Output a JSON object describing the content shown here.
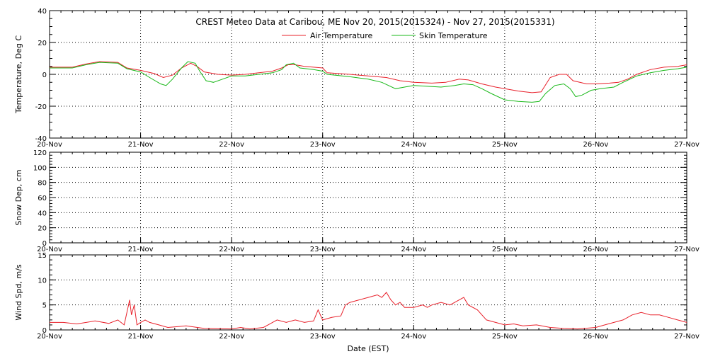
{
  "chart_data": [
    {
      "type": "line",
      "title": "CREST Meteo Data at Caribou, ME   Nov 20, 2015(2015324) - Nov 27, 2015(2015331)",
      "xlabel": "Date (EST)",
      "ylabel": "Temperature, Deg C",
      "ylim": [
        -40,
        40
      ],
      "yticks": [
        "-40",
        "-20",
        "0",
        "20",
        "40"
      ],
      "x_tick_labels": [
        "20-Nov",
        "21-Nov",
        "22-Nov",
        "23-Nov",
        "24-Nov",
        "25-Nov",
        "26-Nov",
        "27-Nov"
      ],
      "xlim_days": [
        20,
        27
      ],
      "grid": true,
      "legend_placement": "top-center",
      "series": [
        {
          "name": "Air Temperature",
          "color": "#e8202a",
          "points": [
            [
              20.0,
              4.5
            ],
            [
              20.25,
              4.5
            ],
            [
              20.4,
              6.5
            ],
            [
              20.55,
              8
            ],
            [
              20.75,
              7.5
            ],
            [
              20.85,
              4
            ],
            [
              21.0,
              2.5
            ],
            [
              21.15,
              0.5
            ],
            [
              21.25,
              -2
            ],
            [
              21.35,
              -0.5
            ],
            [
              21.45,
              4
            ],
            [
              21.55,
              7
            ],
            [
              21.62,
              5
            ],
            [
              21.7,
              1.5
            ],
            [
              21.85,
              0
            ],
            [
              22.0,
              -0.5
            ],
            [
              22.15,
              0
            ],
            [
              22.3,
              1
            ],
            [
              22.45,
              2
            ],
            [
              22.55,
              4
            ],
            [
              22.62,
              6
            ],
            [
              22.7,
              6
            ],
            [
              22.8,
              5
            ],
            [
              23.0,
              4
            ],
            [
              23.05,
              1
            ],
            [
              23.3,
              0
            ],
            [
              23.5,
              -1
            ],
            [
              23.7,
              -2
            ],
            [
              23.85,
              -4
            ],
            [
              24.0,
              -5
            ],
            [
              24.2,
              -5.5
            ],
            [
              24.35,
              -5
            ],
            [
              24.5,
              -3
            ],
            [
              24.6,
              -3.5
            ],
            [
              24.75,
              -6
            ],
            [
              24.9,
              -8
            ],
            [
              25.0,
              -9
            ],
            [
              25.15,
              -10.5
            ],
            [
              25.3,
              -11.5
            ],
            [
              25.4,
              -11
            ],
            [
              25.5,
              -2
            ],
            [
              25.6,
              0
            ],
            [
              25.68,
              0
            ],
            [
              25.75,
              -4
            ],
            [
              25.9,
              -6
            ],
            [
              26.0,
              -6
            ],
            [
              26.15,
              -5.5
            ],
            [
              26.25,
              -5
            ],
            [
              26.35,
              -3
            ],
            [
              26.45,
              0
            ],
            [
              26.6,
              3
            ],
            [
              26.75,
              4.5
            ],
            [
              26.9,
              5
            ],
            [
              27.0,
              6
            ]
          ]
        },
        {
          "name": "Skin Temperature",
          "color": "#18b818",
          "points": [
            [
              20.0,
              4
            ],
            [
              20.25,
              4
            ],
            [
              20.4,
              6
            ],
            [
              20.55,
              7.5
            ],
            [
              20.75,
              7
            ],
            [
              20.85,
              3.5
            ],
            [
              21.0,
              1.5
            ],
            [
              21.1,
              -2
            ],
            [
              21.22,
              -6
            ],
            [
              21.28,
              -7
            ],
            [
              21.35,
              -3
            ],
            [
              21.45,
              4
            ],
            [
              21.52,
              8
            ],
            [
              21.6,
              7
            ],
            [
              21.65,
              2
            ],
            [
              21.72,
              -4
            ],
            [
              21.8,
              -5
            ],
            [
              21.9,
              -3
            ],
            [
              22.0,
              -1
            ],
            [
              22.15,
              -1
            ],
            [
              22.3,
              0
            ],
            [
              22.45,
              1
            ],
            [
              22.55,
              3
            ],
            [
              22.6,
              6
            ],
            [
              22.68,
              7
            ],
            [
              22.75,
              4
            ],
            [
              22.9,
              3
            ],
            [
              23.0,
              2
            ],
            [
              23.05,
              0
            ],
            [
              23.3,
              -1.5
            ],
            [
              23.5,
              -3
            ],
            [
              23.65,
              -5
            ],
            [
              23.8,
              -9
            ],
            [
              23.9,
              -8
            ],
            [
              24.0,
              -7
            ],
            [
              24.15,
              -7.5
            ],
            [
              24.3,
              -8
            ],
            [
              24.45,
              -7
            ],
            [
              24.55,
              -6
            ],
            [
              24.65,
              -6.5
            ],
            [
              24.75,
              -9
            ],
            [
              24.85,
              -12
            ],
            [
              25.0,
              -16
            ],
            [
              25.15,
              -17
            ],
            [
              25.3,
              -17.5
            ],
            [
              25.38,
              -17
            ],
            [
              25.45,
              -12
            ],
            [
              25.55,
              -7
            ],
            [
              25.65,
              -6
            ],
            [
              25.72,
              -9
            ],
            [
              25.78,
              -14
            ],
            [
              25.85,
              -13
            ],
            [
              25.95,
              -10
            ],
            [
              26.05,
              -9
            ],
            [
              26.2,
              -8
            ],
            [
              26.3,
              -5
            ],
            [
              26.45,
              -1
            ],
            [
              26.6,
              1
            ],
            [
              26.75,
              2.5
            ],
            [
              26.9,
              3.5
            ],
            [
              27.0,
              4.5
            ]
          ]
        }
      ]
    },
    {
      "type": "line",
      "xlabel": "",
      "ylabel": "Snow Dep, cm",
      "ylim": [
        0,
        120
      ],
      "yticks": [
        "0",
        "20",
        "40",
        "60",
        "80",
        "100",
        "120"
      ],
      "x_tick_labels": [
        "20-Nov",
        "21-Nov",
        "22-Nov",
        "23-Nov",
        "24-Nov",
        "25-Nov",
        "26-Nov",
        "27-Nov"
      ],
      "xlim_days": [
        20,
        27
      ],
      "grid": true,
      "series": []
    },
    {
      "type": "line",
      "xlabel": "Date (EST)",
      "ylabel": "Wind Spd, m/s",
      "ylim": [
        0,
        15
      ],
      "yticks": [
        "0",
        "5",
        "10",
        "15"
      ],
      "x_tick_labels": [
        "20-Nov",
        "21-Nov",
        "22-Nov",
        "23-Nov",
        "24-Nov",
        "25-Nov",
        "26-Nov",
        "27-Nov"
      ],
      "xlim_days": [
        20,
        27
      ],
      "grid": true,
      "series": [
        {
          "color": "#e8202a",
          "points": [
            [
              20.0,
              1.5
            ],
            [
              20.15,
              1.5
            ],
            [
              20.3,
              1.2
            ],
            [
              20.5,
              1.8
            ],
            [
              20.65,
              1.3
            ],
            [
              20.75,
              2
            ],
            [
              20.82,
              1
            ],
            [
              20.88,
              6
            ],
            [
              20.9,
              3
            ],
            [
              20.93,
              5
            ],
            [
              20.96,
              1
            ],
            [
              21.0,
              1.5
            ],
            [
              21.05,
              2
            ],
            [
              21.1,
              1.5
            ],
            [
              21.2,
              1
            ],
            [
              21.3,
              0.5
            ],
            [
              21.5,
              0.8
            ],
            [
              21.7,
              0.3
            ],
            [
              22.0,
              0.2
            ],
            [
              22.1,
              0.5
            ],
            [
              22.2,
              0.2
            ],
            [
              22.35,
              0.5
            ],
            [
              22.5,
              2
            ],
            [
              22.6,
              1.5
            ],
            [
              22.7,
              2
            ],
            [
              22.8,
              1.5
            ],
            [
              22.9,
              1.8
            ],
            [
              22.95,
              4
            ],
            [
              23.0,
              2
            ],
            [
              23.1,
              2.5
            ],
            [
              23.2,
              2.8
            ],
            [
              23.25,
              5
            ],
            [
              23.3,
              5.5
            ],
            [
              23.4,
              6
            ],
            [
              23.5,
              6.5
            ],
            [
              23.6,
              7
            ],
            [
              23.65,
              6.5
            ],
            [
              23.7,
              7.5
            ],
            [
              23.75,
              6
            ],
            [
              23.8,
              5
            ],
            [
              23.85,
              5.5
            ],
            [
              23.9,
              4.5
            ],
            [
              24.0,
              4.5
            ],
            [
              24.1,
              5
            ],
            [
              24.15,
              4.5
            ],
            [
              24.2,
              5
            ],
            [
              24.3,
              5.5
            ],
            [
              24.4,
              5
            ],
            [
              24.5,
              6
            ],
            [
              24.55,
              6.5
            ],
            [
              24.6,
              5
            ],
            [
              24.7,
              4
            ],
            [
              24.8,
              2
            ],
            [
              24.9,
              1.5
            ],
            [
              25.0,
              1
            ],
            [
              25.1,
              1.2
            ],
            [
              25.2,
              0.8
            ],
            [
              25.35,
              1
            ],
            [
              25.5,
              0.5
            ],
            [
              25.65,
              0.3
            ],
            [
              25.8,
              0.2
            ],
            [
              26.0,
              0.5
            ],
            [
              26.1,
              1
            ],
            [
              26.2,
              1.5
            ],
            [
              26.3,
              2
            ],
            [
              26.4,
              3
            ],
            [
              26.5,
              3.5
            ],
            [
              26.6,
              3
            ],
            [
              26.7,
              3
            ],
            [
              26.8,
              2.5
            ],
            [
              26.9,
              2
            ],
            [
              27.0,
              1.5
            ]
          ]
        }
      ]
    }
  ]
}
